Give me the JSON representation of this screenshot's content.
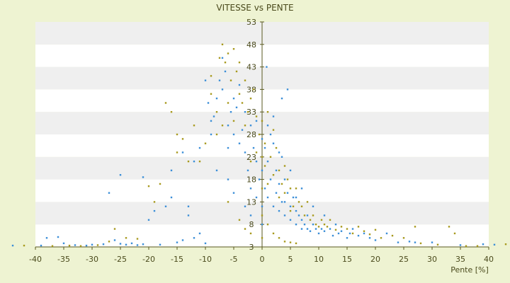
{
  "chart_data": {
    "type": "scatter",
    "title": "VITESSE vs PENTE",
    "xlabel": "Pente [%]",
    "ylabel": "",
    "xlim": [
      -40,
      40
    ],
    "ylim": [
      3,
      53
    ],
    "x_ticks": [
      -40,
      -35,
      -30,
      -25,
      -20,
      -15,
      -10,
      -5,
      0,
      5,
      10,
      15,
      20,
      25,
      30,
      35,
      40
    ],
    "y_ticks": [
      3,
      8,
      13,
      18,
      23,
      28,
      33,
      38,
      43,
      48,
      53
    ],
    "y_tick_labels": [
      "3",
      "8",
      "13",
      "18",
      "23",
      "28",
      "33",
      "38",
      "43",
      "48",
      "53"
    ],
    "grid": "horizontal bands",
    "colors": {
      "series_a": "#3c8fd8",
      "series_b": "#a89a1e",
      "band_light": "#ffffff",
      "band_dark": "#efefef",
      "axis": "#5a5a20",
      "background": "#eef3d2"
    },
    "series": [
      {
        "color": "#3c8fd8",
        "points": [
          [
            -44,
            3.3
          ],
          [
            -39,
            3.3
          ],
          [
            -38,
            5
          ],
          [
            -36,
            5.2
          ],
          [
            -35,
            3.8
          ],
          [
            -33,
            3.4
          ],
          [
            -31,
            3.3
          ],
          [
            -30,
            3.5
          ],
          [
            -28,
            3.6
          ],
          [
            -26,
            4.5
          ],
          [
            -25,
            3.7
          ],
          [
            -24,
            3.5
          ],
          [
            -23,
            3.8
          ],
          [
            -22,
            3.4
          ],
          [
            -21,
            3.6
          ],
          [
            -20,
            9
          ],
          [
            -19,
            11
          ],
          [
            -18,
            3.5
          ],
          [
            -17,
            12
          ],
          [
            -16,
            14
          ],
          [
            -15,
            4
          ],
          [
            -14,
            4.5
          ],
          [
            -13,
            12
          ],
          [
            -12,
            5
          ],
          [
            -11,
            6
          ],
          [
            -10,
            3.8
          ],
          [
            -27,
            15
          ],
          [
            -25,
            19
          ],
          [
            -21,
            18.5
          ],
          [
            -16,
            20
          ],
          [
            -14,
            24
          ],
          [
            -13,
            10
          ],
          [
            -12,
            22
          ],
          [
            -11,
            25
          ],
          [
            -10,
            40
          ],
          [
            -9.5,
            35
          ],
          [
            -9,
            28
          ],
          [
            -8.5,
            32
          ],
          [
            -8,
            36
          ],
          [
            -7.5,
            40
          ],
          [
            -7,
            38
          ],
          [
            -7,
            45
          ],
          [
            -6.5,
            42
          ],
          [
            -6,
            30
          ],
          [
            -6,
            25
          ],
          [
            -5.5,
            33
          ],
          [
            -5,
            28
          ],
          [
            -5,
            36
          ],
          [
            -4.5,
            34
          ],
          [
            -4,
            26
          ],
          [
            -4,
            39
          ],
          [
            -3.5,
            29
          ],
          [
            -3,
            24
          ],
          [
            -3,
            33
          ],
          [
            -2.5,
            20
          ],
          [
            -2,
            30
          ],
          [
            -2,
            16
          ],
          [
            -1.5,
            25
          ],
          [
            -1,
            22
          ],
          [
            -1,
            14
          ],
          [
            -0.5,
            18
          ],
          [
            0,
            27
          ],
          [
            0,
            20
          ],
          [
            0,
            12
          ],
          [
            0,
            8
          ],
          [
            0.5,
            25
          ],
          [
            0.5,
            16
          ],
          [
            1,
            22
          ],
          [
            1,
            14
          ],
          [
            1.5,
            28
          ],
          [
            1.5,
            18
          ],
          [
            2,
            26
          ],
          [
            2,
            12
          ],
          [
            2.5,
            20
          ],
          [
            2.5,
            15
          ],
          [
            3,
            17
          ],
          [
            3,
            11
          ],
          [
            3.5,
            23
          ],
          [
            3.5,
            13
          ],
          [
            4,
            18
          ],
          [
            4,
            10
          ],
          [
            4.5,
            15
          ],
          [
            5,
            12
          ],
          [
            5,
            9
          ],
          [
            5.5,
            14
          ],
          [
            6,
            11
          ],
          [
            6,
            8
          ],
          [
            6.5,
            10
          ],
          [
            7,
            9
          ],
          [
            7,
            7
          ],
          [
            7.5,
            8
          ],
          [
            8,
            10
          ],
          [
            8,
            7
          ],
          [
            8.5,
            6.5
          ],
          [
            9,
            8
          ],
          [
            9.5,
            7
          ],
          [
            10,
            6
          ],
          [
            10.5,
            7
          ],
          [
            11,
            6.5
          ],
          [
            12,
            7
          ],
          [
            12.5,
            5.5
          ],
          [
            13,
            8
          ],
          [
            13.5,
            6
          ],
          [
            14,
            6.5
          ],
          [
            15,
            5
          ],
          [
            15.5,
            6
          ],
          [
            16,
            7
          ],
          [
            17,
            5.5
          ],
          [
            18,
            6
          ],
          [
            19,
            5
          ],
          [
            20,
            4.5
          ],
          [
            22,
            6
          ],
          [
            24,
            4
          ],
          [
            26,
            4.2
          ],
          [
            27,
            4
          ],
          [
            30,
            4
          ],
          [
            35,
            3.4
          ],
          [
            39,
            3.6
          ],
          [
            41,
            3.5
          ],
          [
            0.8,
            43
          ],
          [
            3.5,
            36
          ],
          [
            4.5,
            38
          ],
          [
            -9,
            31
          ],
          [
            -8,
            20
          ],
          [
            -6,
            18
          ],
          [
            -5,
            15
          ],
          [
            -3,
            12
          ],
          [
            -2,
            10
          ],
          [
            1,
            30
          ],
          [
            2,
            32
          ],
          [
            -1,
            31
          ],
          [
            3,
            24
          ],
          [
            5,
            20
          ],
          [
            7,
            16
          ],
          [
            9,
            12
          ],
          [
            11,
            10
          ],
          [
            6,
            14
          ],
          [
            4,
            13
          ]
        ]
      },
      {
        "color": "#a89a1e",
        "points": [
          [
            -42,
            3.3
          ],
          [
            -37,
            3.2
          ],
          [
            -34,
            3.3
          ],
          [
            -32,
            3.2
          ],
          [
            -29,
            3.4
          ],
          [
            -27,
            4.2
          ],
          [
            -26,
            7
          ],
          [
            -24,
            5
          ],
          [
            -22,
            4.8
          ],
          [
            -20,
            16.5
          ],
          [
            -19,
            13
          ],
          [
            -18,
            17
          ],
          [
            -17,
            35
          ],
          [
            -16,
            33
          ],
          [
            -15,
            28
          ],
          [
            -15,
            24
          ],
          [
            -14,
            27
          ],
          [
            -13,
            22
          ],
          [
            -12,
            30
          ],
          [
            -11,
            22
          ],
          [
            -10,
            26
          ],
          [
            -9,
            37
          ],
          [
            -9,
            41
          ],
          [
            -8,
            33
          ],
          [
            -8,
            28
          ],
          [
            -7.5,
            45
          ],
          [
            -7,
            48
          ],
          [
            -7,
            30
          ],
          [
            -6.5,
            44
          ],
          [
            -6,
            46
          ],
          [
            -6,
            35
          ],
          [
            -5.5,
            40
          ],
          [
            -5,
            47
          ],
          [
            -5,
            31
          ],
          [
            -4.5,
            42
          ],
          [
            -4,
            37
          ],
          [
            -4,
            44
          ],
          [
            -3.5,
            35
          ],
          [
            -3,
            40
          ],
          [
            -3,
            30
          ],
          [
            -2.5,
            33
          ],
          [
            -2,
            36
          ],
          [
            -2,
            22
          ],
          [
            -1.5,
            38
          ],
          [
            -1,
            32
          ],
          [
            -1,
            24
          ],
          [
            -0.5,
            28
          ],
          [
            0,
            31
          ],
          [
            0,
            23
          ],
          [
            0,
            16
          ],
          [
            0,
            10
          ],
          [
            0,
            5
          ],
          [
            0.5,
            21
          ],
          [
            0.5,
            26
          ],
          [
            1,
            17
          ],
          [
            1,
            33
          ],
          [
            1.5,
            23
          ],
          [
            2,
            19
          ],
          [
            2,
            29
          ],
          [
            2.5,
            25
          ],
          [
            3,
            20
          ],
          [
            3,
            14
          ],
          [
            3.5,
            17
          ],
          [
            4,
            21
          ],
          [
            4,
            15
          ],
          [
            4.5,
            18
          ],
          [
            5,
            16
          ],
          [
            5,
            11
          ],
          [
            5.5,
            12
          ],
          [
            6,
            16
          ],
          [
            6.5,
            13
          ],
          [
            7,
            12
          ],
          [
            7.5,
            10
          ],
          [
            8,
            13
          ],
          [
            8.5,
            9
          ],
          [
            9,
            10
          ],
          [
            9.5,
            8
          ],
          [
            10,
            7.5
          ],
          [
            10.5,
            9
          ],
          [
            11,
            8
          ],
          [
            11.5,
            7.5
          ],
          [
            12,
            9
          ],
          [
            13,
            6.8
          ],
          [
            14,
            7.5
          ],
          [
            15,
            7
          ],
          [
            16,
            6
          ],
          [
            17,
            7.5
          ],
          [
            18,
            6.5
          ],
          [
            19,
            5.8
          ],
          [
            20,
            6.8
          ],
          [
            21,
            5
          ],
          [
            23,
            5.5
          ],
          [
            25,
            5
          ],
          [
            27,
            7.5
          ],
          [
            28,
            3.8
          ],
          [
            31,
            3.5
          ],
          [
            33,
            7.5
          ],
          [
            34,
            6
          ],
          [
            36,
            3.2
          ],
          [
            38,
            3.2
          ],
          [
            43,
            3.6
          ],
          [
            -6,
            13
          ],
          [
            -4,
            9
          ],
          [
            -3,
            7
          ],
          [
            -2,
            6
          ],
          [
            1,
            8
          ],
          [
            2,
            6
          ],
          [
            3,
            5
          ],
          [
            4,
            4.2
          ],
          [
            5,
            4
          ],
          [
            6,
            3.8
          ]
        ]
      }
    ]
  }
}
